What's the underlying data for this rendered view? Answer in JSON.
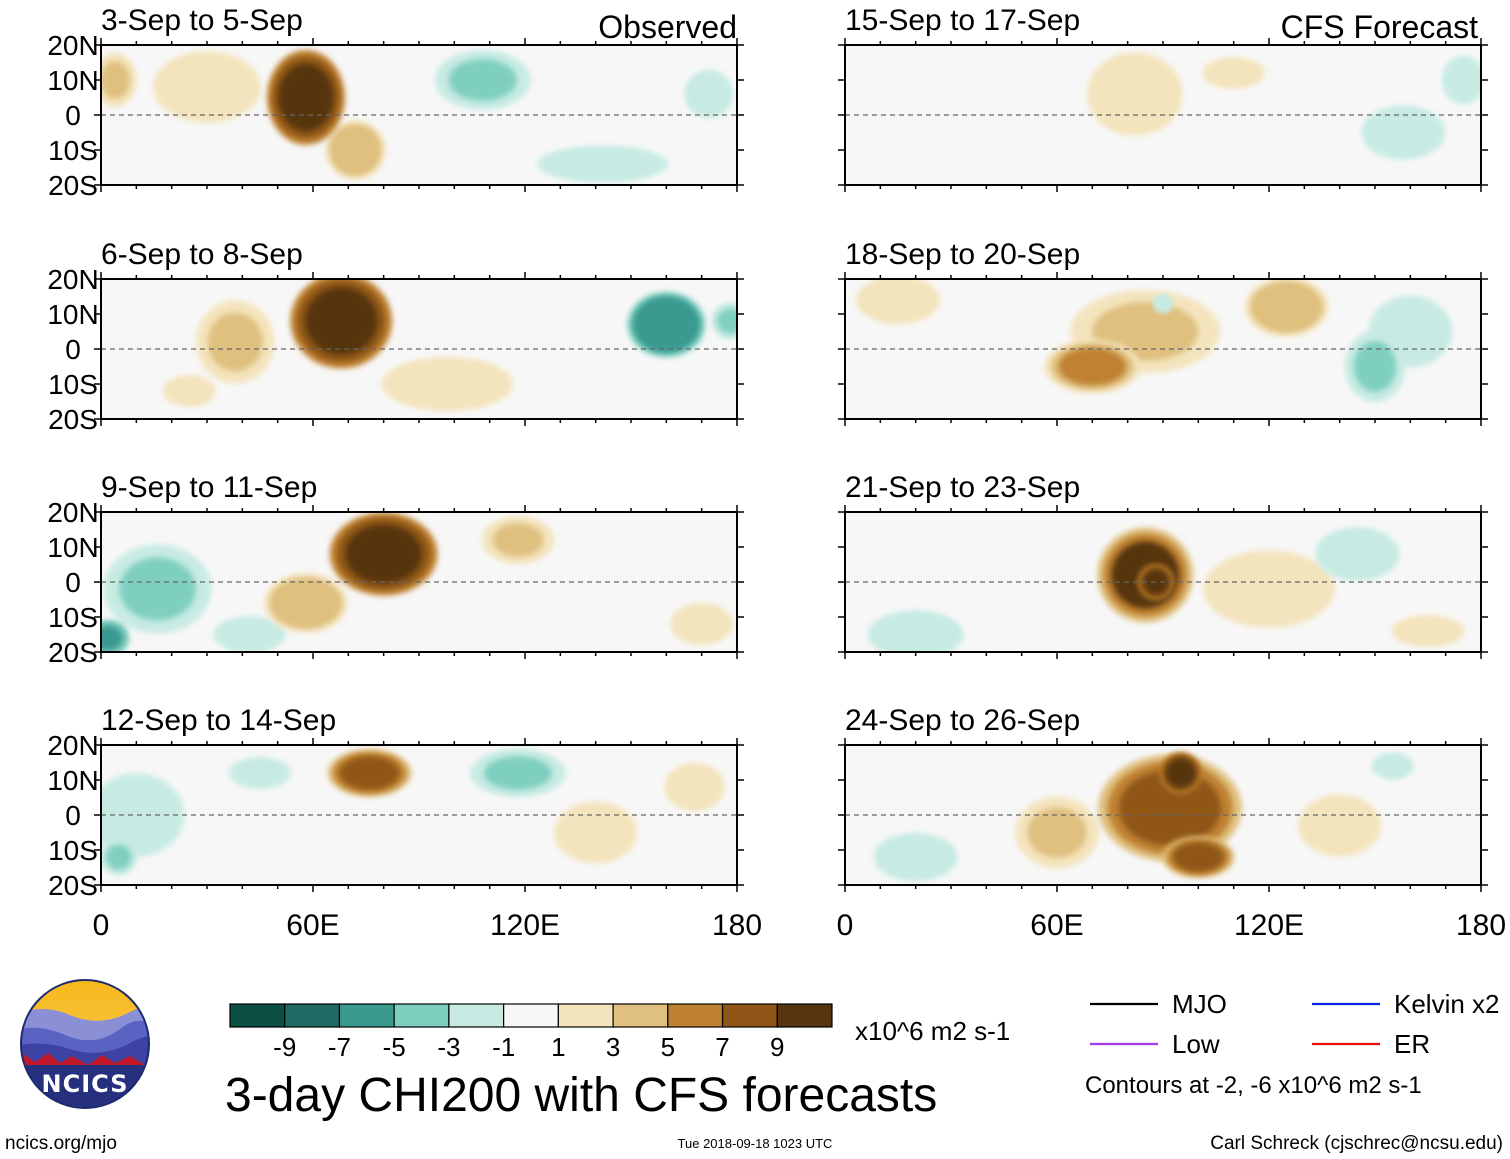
{
  "chart_data": {
    "type": "heatmap",
    "title": "3-day CHI200 with CFS forecasts",
    "units": "x10^6 m2 s-1",
    "observed_label": "Observed",
    "forecast_label": "CFS Forecast",
    "lat_ticks": [
      "20N",
      "10N",
      "0",
      "10S",
      "20S"
    ],
    "lat_values": [
      20,
      10,
      0,
      -10,
      -20
    ],
    "lon_ticks": [
      "0",
      "60E",
      "120E",
      "180"
    ],
    "lon_values": [
      0,
      60,
      120,
      180
    ],
    "xlim": [
      0,
      180
    ],
    "ylim": [
      -20,
      20
    ],
    "colorbar": {
      "labels": [
        "-9",
        "-7",
        "-5",
        "-3",
        "-1",
        "1",
        "3",
        "5",
        "7",
        "9"
      ],
      "levels": [
        -9,
        -7,
        -5,
        -3,
        -1,
        1,
        3,
        5,
        7,
        9
      ],
      "colors": [
        "#0c4f45",
        "#1e6b64",
        "#3a9a90",
        "#7fcfc0",
        "#c7ebe3",
        "#f7f7f7",
        "#f4e4bd",
        "#dfc07f",
        "#bf8131",
        "#8f5618",
        "#573510"
      ]
    },
    "legend": [
      {
        "label": "MJO",
        "color": "#000000"
      },
      {
        "label": "Kelvin x2",
        "color": "#0b24e6"
      },
      {
        "label": "Low",
        "color": "#a33cf0"
      },
      {
        "label": "ER",
        "color": "#e8100e"
      }
    ],
    "contour_note": "Contours at -2, -6 x10^6 m2 s-1",
    "panels": [
      {
        "title": "3-Sep to 5-Sep",
        "kind": "observed",
        "anomalies": [
          {
            "lon": 30,
            "lat": 8,
            "sx": 18,
            "sy": 12,
            "v": 2
          },
          {
            "lon": 58,
            "lat": 5,
            "sx": 13,
            "sy": 16,
            "v": 11
          },
          {
            "lon": 72,
            "lat": -10,
            "sx": 10,
            "sy": 10,
            "v": 4
          },
          {
            "lon": 4,
            "lat": 10,
            "sx": 7,
            "sy": 9,
            "v": 3
          },
          {
            "lon": 108,
            "lat": 10,
            "sx": 16,
            "sy": 10,
            "v": -4
          },
          {
            "lon": 172,
            "lat": 6,
            "sx": 8,
            "sy": 8,
            "v": -3
          },
          {
            "lon": 142,
            "lat": -14,
            "sx": 22,
            "sy": 6,
            "v": -2
          }
        ]
      },
      {
        "title": "15-Sep to 17-Sep",
        "kind": "forecast",
        "anomalies": [
          {
            "lon": 82,
            "lat": 6,
            "sx": 16,
            "sy": 14,
            "v": 2
          },
          {
            "lon": 158,
            "lat": -5,
            "sx": 14,
            "sy": 9,
            "v": -3
          },
          {
            "lon": 175,
            "lat": 10,
            "sx": 7,
            "sy": 8,
            "v": -3
          },
          {
            "lon": 110,
            "lat": 12,
            "sx": 12,
            "sy": 6,
            "v": 1.5
          }
        ]
      },
      {
        "title": "6-Sep to 8-Sep",
        "kind": "observed",
        "anomalies": [
          {
            "lon": 68,
            "lat": 8,
            "sx": 17,
            "sy": 16,
            "v": 11
          },
          {
            "lon": 38,
            "lat": 2,
            "sx": 13,
            "sy": 14,
            "v": 3
          },
          {
            "lon": 98,
            "lat": -10,
            "sx": 22,
            "sy": 9,
            "v": 2
          },
          {
            "lon": 160,
            "lat": 7,
            "sx": 13,
            "sy": 11,
            "v": -7
          },
          {
            "lon": 178,
            "lat": 8,
            "sx": 6,
            "sy": 6,
            "v": -4
          },
          {
            "lon": 25,
            "lat": -12,
            "sx": 10,
            "sy": 6,
            "v": 1.5
          }
        ]
      },
      {
        "title": "18-Sep to 20-Sep",
        "kind": "forecast",
        "anomalies": [
          {
            "lon": 70,
            "lat": -5,
            "sx": 16,
            "sy": 9,
            "v": 5
          },
          {
            "lon": 85,
            "lat": 5,
            "sx": 25,
            "sy": 14,
            "v": 3
          },
          {
            "lon": 125,
            "lat": 12,
            "sx": 14,
            "sy": 10,
            "v": 4
          },
          {
            "lon": 15,
            "lat": 14,
            "sx": 14,
            "sy": 8,
            "v": 2.5
          },
          {
            "lon": 150,
            "lat": -5,
            "sx": 10,
            "sy": 12,
            "v": -4
          },
          {
            "lon": 160,
            "lat": 5,
            "sx": 14,
            "sy": 12,
            "v": -2
          },
          {
            "lon": 90,
            "lat": 13,
            "sx": 3,
            "sy": 3,
            "v": -3
          }
        ]
      },
      {
        "title": "9-Sep to 11-Sep",
        "kind": "observed",
        "anomalies": [
          {
            "lon": 80,
            "lat": 8,
            "sx": 18,
            "sy": 14,
            "v": 11
          },
          {
            "lon": 58,
            "lat": -6,
            "sx": 14,
            "sy": 10,
            "v": 4
          },
          {
            "lon": 118,
            "lat": 12,
            "sx": 12,
            "sy": 8,
            "v": 3
          },
          {
            "lon": 16,
            "lat": -2,
            "sx": 18,
            "sy": 15,
            "v": -4
          },
          {
            "lon": 2,
            "lat": -16,
            "sx": 7,
            "sy": 6,
            "v": -6
          },
          {
            "lon": 42,
            "lat": -15,
            "sx": 12,
            "sy": 6,
            "v": -2
          },
          {
            "lon": 170,
            "lat": -12,
            "sx": 12,
            "sy": 8,
            "v": 1.5
          }
        ]
      },
      {
        "title": "21-Sep to 23-Sep",
        "kind": "forecast",
        "anomalies": [
          {
            "lon": 85,
            "lat": 2,
            "sx": 16,
            "sy": 16,
            "v": 9
          },
          {
            "lon": 88,
            "lat": 0,
            "sx": 6,
            "sy": 6,
            "v": 11
          },
          {
            "lon": 120,
            "lat": -2,
            "sx": 22,
            "sy": 13,
            "v": 2
          },
          {
            "lon": 20,
            "lat": -15,
            "sx": 16,
            "sy": 8,
            "v": -2
          },
          {
            "lon": 145,
            "lat": 8,
            "sx": 14,
            "sy": 9,
            "v": -2
          },
          {
            "lon": 165,
            "lat": -14,
            "sx": 14,
            "sy": 6,
            "v": 1.5
          }
        ]
      },
      {
        "title": "12-Sep to 14-Sep",
        "kind": "observed",
        "anomalies": [
          {
            "lon": 76,
            "lat": 12,
            "sx": 14,
            "sy": 8,
            "v": 7
          },
          {
            "lon": 118,
            "lat": 12,
            "sx": 16,
            "sy": 8,
            "v": -4
          },
          {
            "lon": 140,
            "lat": -5,
            "sx": 16,
            "sy": 12,
            "v": 1.5
          },
          {
            "lon": 10,
            "lat": 0,
            "sx": 16,
            "sy": 14,
            "v": -2
          },
          {
            "lon": 5,
            "lat": -12,
            "sx": 6,
            "sy": 6,
            "v": -4
          },
          {
            "lon": 168,
            "lat": 8,
            "sx": 10,
            "sy": 8,
            "v": 2
          },
          {
            "lon": 45,
            "lat": 12,
            "sx": 12,
            "sy": 6,
            "v": -1.5
          }
        ]
      },
      {
        "title": "24-Sep to 26-Sep",
        "kind": "forecast",
        "anomalies": [
          {
            "lon": 92,
            "lat": 2,
            "sx": 24,
            "sy": 18,
            "v": 7
          },
          {
            "lon": 95,
            "lat": 12,
            "sx": 7,
            "sy": 7,
            "v": 11
          },
          {
            "lon": 100,
            "lat": -12,
            "sx": 12,
            "sy": 7,
            "v": 8
          },
          {
            "lon": 60,
            "lat": -5,
            "sx": 14,
            "sy": 12,
            "v": 3
          },
          {
            "lon": 20,
            "lat": -12,
            "sx": 14,
            "sy": 8,
            "v": -2
          },
          {
            "lon": 155,
            "lat": 14,
            "sx": 8,
            "sy": 5,
            "v": -1.5
          },
          {
            "lon": 140,
            "lat": -3,
            "sx": 16,
            "sy": 12,
            "v": 1.5
          }
        ]
      }
    ]
  },
  "logo": {
    "text": "NCICS"
  },
  "footer": {
    "url": "ncics.org/mjo",
    "timestamp": "Tue 2018-09-18 1023 UTC",
    "author": "Carl Schreck (cjschrec@ncsu.edu)"
  }
}
